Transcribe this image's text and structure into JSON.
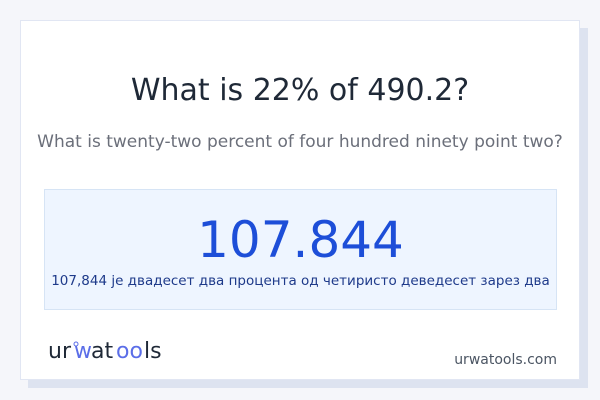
{
  "title": "What is 22% of 490.2?",
  "subtitle": "What is twenty-two percent of four hundred ninety point two?",
  "result": {
    "value": "107.844",
    "words": "107,844 је двадесет два процента од четиристо деведесет зарез два"
  },
  "footer": {
    "logo_text": "urwatools",
    "site": "urwatools.com"
  },
  "colors": {
    "accent": "#1d4ed8",
    "logo_accent": "#5b6ee8"
  }
}
